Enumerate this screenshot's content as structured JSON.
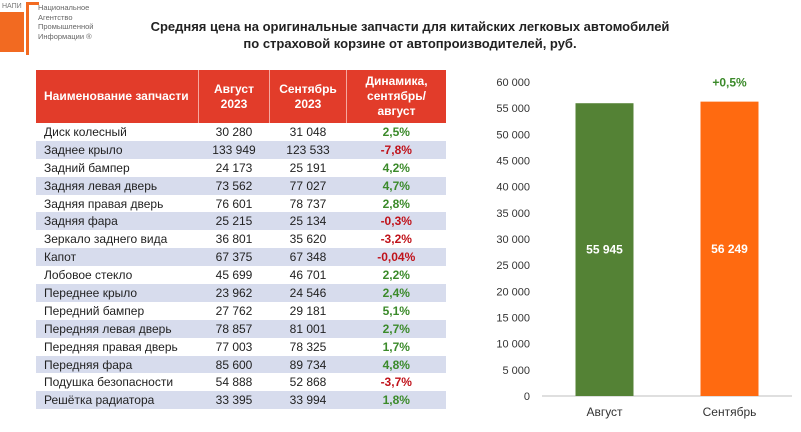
{
  "logo": {
    "small": "НАПИ",
    "lines": [
      "Национальное",
      "Агентство",
      "Промышленной",
      "Информации ®"
    ]
  },
  "title": {
    "line1": "Средняя цена на оригинальные запчасти для китайских легковых автомобилей",
    "line2": "по страховой корзине от автопроизводителей, руб."
  },
  "table": {
    "headers": {
      "name": "Наименование запчасти",
      "aug": "Август 2023",
      "sep": "Сентябрь 2023",
      "dyn": "Динамика, сентябрь/август"
    },
    "rows": [
      {
        "name": "Диск колесный",
        "aug": "30 280",
        "sep": "31 048",
        "dyn": "2,5%",
        "sign": "pos"
      },
      {
        "name": "Заднее крыло",
        "aug": "133 949",
        "sep": "123 533",
        "dyn": "-7,8%",
        "sign": "neg"
      },
      {
        "name": "Задний бампер",
        "aug": "24 173",
        "sep": "25 191",
        "dyn": "4,2%",
        "sign": "pos"
      },
      {
        "name": "Задняя левая дверь",
        "aug": "73 562",
        "sep": "77 027",
        "dyn": "4,7%",
        "sign": "pos"
      },
      {
        "name": "Задняя правая дверь",
        "aug": "76 601",
        "sep": "78 737",
        "dyn": "2,8%",
        "sign": "pos"
      },
      {
        "name": "Задняя фара",
        "aug": "25 215",
        "sep": "25 134",
        "dyn": "-0,3%",
        "sign": "neg"
      },
      {
        "name": "Зеркало заднего вида",
        "aug": "36 801",
        "sep": "35 620",
        "dyn": "-3,2%",
        "sign": "neg"
      },
      {
        "name": "Капот",
        "aug": "67 375",
        "sep": "67 348",
        "dyn": "-0,04%",
        "sign": "neg"
      },
      {
        "name": "Лобовое стекло",
        "aug": "45 699",
        "sep": "46 701",
        "dyn": "2,2%",
        "sign": "pos"
      },
      {
        "name": "Переднее крыло",
        "aug": "23 962",
        "sep": "24 546",
        "dyn": "2,4%",
        "sign": "pos"
      },
      {
        "name": "Передний бампер",
        "aug": "27 762",
        "sep": "29 181",
        "dyn": "5,1%",
        "sign": "pos"
      },
      {
        "name": "Передняя левая дверь",
        "aug": "78 857",
        "sep": "81 001",
        "dyn": "2,7%",
        "sign": "pos"
      },
      {
        "name": "Передняя правая дверь",
        "aug": "77 003",
        "sep": "78 325",
        "dyn": "1,7%",
        "sign": "pos"
      },
      {
        "name": "Передняя фара",
        "aug": "85 600",
        "sep": "89 734",
        "dyn": "4,8%",
        "sign": "pos"
      },
      {
        "name": "Подушка безопасности",
        "aug": "54 888",
        "sep": "52 868",
        "dyn": "-3,7%",
        "sign": "neg"
      },
      {
        "name": "Решётка радиатора",
        "aug": "33 395",
        "sep": "33 994",
        "dyn": "1,8%",
        "sign": "pos"
      }
    ]
  },
  "colors": {
    "header_bg": "#e23c2a",
    "row_alt": "#d7dced",
    "positive": "#3b8a2a",
    "negative": "#c0121a",
    "bar_aug": "#548235",
    "bar_sep": "#ff6a10",
    "logo_accent": "#f26a21"
  },
  "chart_data": {
    "type": "bar",
    "categories": [
      "Август",
      "Сентябрь"
    ],
    "values": [
      55945,
      56249
    ],
    "data_labels": [
      "55 945",
      "56 249"
    ],
    "annotation": "+0,5%",
    "ylim": [
      0,
      60000
    ],
    "yticks": [
      0,
      5000,
      10000,
      15000,
      20000,
      25000,
      30000,
      35000,
      40000,
      45000,
      50000,
      55000,
      60000
    ],
    "ytick_labels": [
      "0",
      "5 000",
      "10 000",
      "15 000",
      "20 000",
      "25 000",
      "30 000",
      "35 000",
      "40 000",
      "45 000",
      "50 000",
      "55 000",
      "60 000"
    ],
    "grid": false,
    "legend": "none"
  }
}
